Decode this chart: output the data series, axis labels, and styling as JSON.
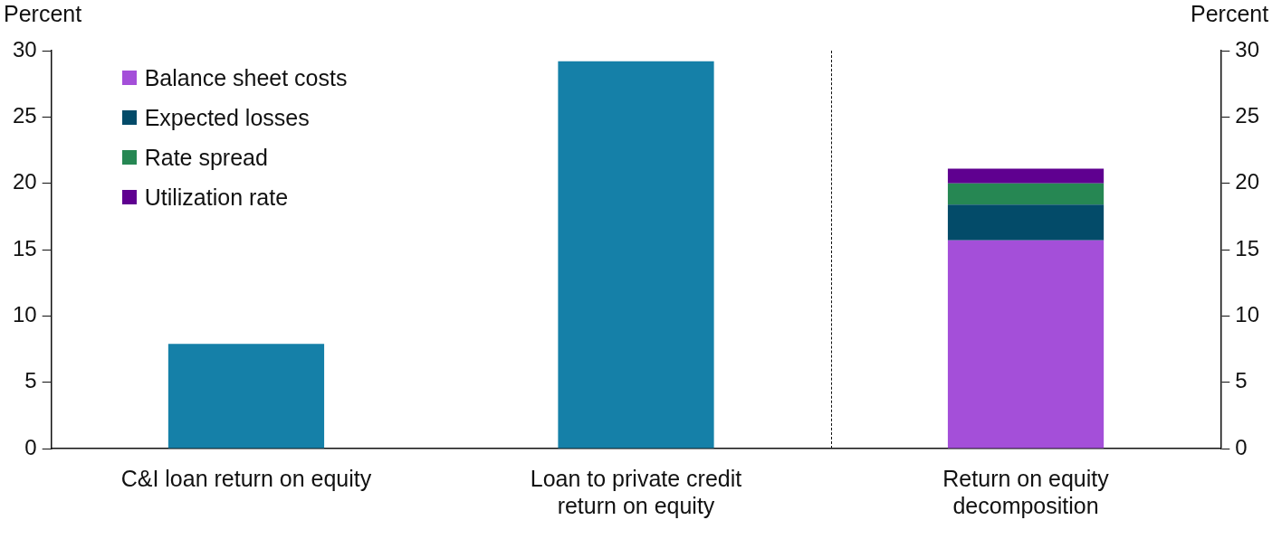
{
  "chart_data": {
    "type": "bar",
    "stacked": true,
    "categories": [
      "C&I loan return on equity",
      "Loan to private credit return on equity",
      "Return on equity decomposition"
    ],
    "series": [
      {
        "color": "#1580a8",
        "values": [
          7.9,
          29.2,
          null
        ]
      },
      {
        "name": "Balance sheet costs",
        "color": "#a44fd9",
        "values": [
          null,
          null,
          15.7
        ]
      },
      {
        "name": "Expected losses",
        "color": "#034b69",
        "values": [
          null,
          null,
          2.7
        ]
      },
      {
        "name": "Rate spread",
        "color": "#268753",
        "values": [
          null,
          null,
          1.6
        ]
      },
      {
        "name": "Utilization rate",
        "color": "#5f0090",
        "values": [
          null,
          null,
          1.1
        ]
      }
    ],
    "ylabel": "Percent",
    "y2label": "Percent",
    "ylim": [
      0,
      30
    ],
    "yticks": [
      0,
      5,
      10,
      15,
      20,
      25,
      30
    ],
    "y2lim": [
      0,
      30
    ],
    "y2ticks": [
      0,
      5,
      10,
      15,
      20,
      25,
      30
    ],
    "grid": false,
    "legend": "top left"
  }
}
